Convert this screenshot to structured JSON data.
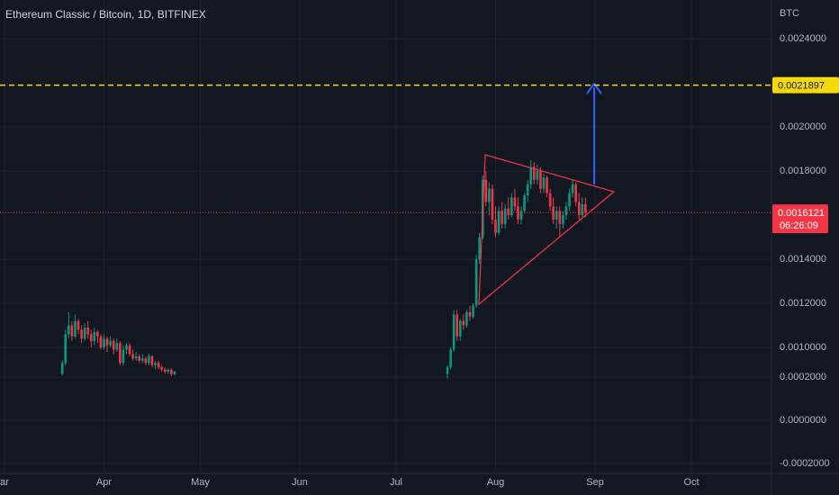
{
  "chart_data": {
    "type": "candlestick",
    "title": "Ethereum Classic / Bitcoin, 1D, BITFINEX",
    "currency": "BTC",
    "up_color": "#089981",
    "down_color": "#f23645",
    "target_price": 0.0021897,
    "target_color": "#f5d90a",
    "last_price": 0.0016121,
    "countdown": "06:26:09",
    "last_color": "#f23645",
    "xlim": [
      -1.4,
      238.4
    ],
    "xticks": [
      {
        "value": 0,
        "label": "ar"
      },
      {
        "value": 31,
        "label": "Apr"
      },
      {
        "value": 61,
        "label": "May"
      },
      {
        "value": 92,
        "label": "Jun"
      },
      {
        "value": 122,
        "label": "Jul"
      },
      {
        "value": 153,
        "label": "Aug"
      },
      {
        "value": 184,
        "label": "Sep"
      },
      {
        "value": 214,
        "label": "Oct"
      }
    ],
    "ylim": [
      0.000433,
      0.002576
    ],
    "yticks": [
      {
        "value": 0.0024,
        "label": "0.0024000"
      },
      {
        "value": 0.002,
        "label": "0.0020000"
      },
      {
        "value": 0.0018,
        "label": "0.0018000"
      },
      {
        "value": 0.0014,
        "label": "0.0014000"
      },
      {
        "value": 0.0012,
        "label": "0.0012000"
      },
      {
        "value": 0.001,
        "label": "0.0010000"
      }
    ],
    "y2lim": [
      -0.000242,
      0.001946
    ],
    "y2ticks": [
      {
        "value": 0.0002,
        "label": "0.0002000"
      },
      {
        "value": 0,
        "label": "0.0000000"
      },
      {
        "value": -0.0002,
        "label": "-0.0002000"
      }
    ],
    "x": [
      18,
      19,
      20,
      21,
      22,
      23,
      24,
      25,
      26,
      27,
      28,
      29,
      30,
      31,
      32,
      33,
      34,
      35,
      36,
      37,
      38,
      39,
      40,
      41,
      42,
      43,
      44,
      45,
      46,
      47,
      48,
      49,
      50,
      51,
      52,
      53,
      138,
      139,
      140,
      141,
      142,
      143,
      144,
      145,
      146,
      147,
      148,
      149,
      150,
      151,
      152,
      153,
      154,
      155,
      156,
      157,
      158,
      159,
      160,
      161,
      162,
      163,
      164,
      165,
      166,
      167,
      168,
      169,
      170,
      171,
      172,
      173,
      174,
      175,
      176,
      177,
      178,
      179,
      180,
      181
    ],
    "open": [
      0.00088,
      0.00093,
      0.00106,
      0.0011,
      0.00105,
      0.00112,
      0.00108,
      0.00104,
      0.00109,
      0.00106,
      0.00103,
      0.00107,
      0.00105,
      0.001,
      0.00104,
      0.00101,
      0.00103,
      0.00099,
      0.00102,
      0.00093,
      0.00099,
      0.00101,
      0.00097,
      0.00095,
      0.00096,
      0.00094,
      0.00095,
      0.00093,
      0.00096,
      0.00092,
      0.00093,
      0.00091,
      0.0009,
      0.00089,
      0.0009,
      0.00088,
      0.00088,
      0.00091,
      0.00099,
      0.00115,
      0.00105,
      0.00112,
      0.0011,
      0.00116,
      0.00114,
      0.00119,
      0.0014,
      0.0015,
      0.00176,
      0.00166,
      0.00172,
      0.00158,
      0.00152,
      0.00162,
      0.00156,
      0.00163,
      0.0016,
      0.00168,
      0.00164,
      0.00158,
      0.00162,
      0.00169,
      0.00174,
      0.00182,
      0.00176,
      0.0018,
      0.00172,
      0.00177,
      0.0017,
      0.00164,
      0.00158,
      0.00162,
      0.00156,
      0.0016,
      0.00164,
      0.0017,
      0.00174,
      0.00166,
      0.0016,
      0.00165
    ],
    "high": [
      0.00094,
      0.00108,
      0.00116,
      0.00112,
      0.00115,
      0.00113,
      0.0011,
      0.00111,
      0.00112,
      0.00108,
      0.00109,
      0.00108,
      0.00106,
      0.00106,
      0.00105,
      0.00105,
      0.00104,
      0.00104,
      0.00103,
      0.00101,
      0.00102,
      0.00102,
      0.00099,
      0.00098,
      0.00097,
      0.00097,
      0.00096,
      0.00097,
      0.000965,
      0.00094,
      0.00094,
      0.00092,
      0.00091,
      0.000905,
      0.000905,
      0.000895,
      0.00092,
      0.001,
      0.00117,
      0.00117,
      0.00113,
      0.00115,
      0.00117,
      0.00119,
      0.0012,
      0.00142,
      0.00152,
      0.00178,
      0.0018,
      0.00175,
      0.00174,
      0.00164,
      0.00164,
      0.00166,
      0.00165,
      0.00168,
      0.0017,
      0.00172,
      0.00168,
      0.00164,
      0.0017,
      0.00176,
      0.00185,
      0.00184,
      0.00183,
      0.00182,
      0.00179,
      0.00178,
      0.00172,
      0.00168,
      0.00164,
      0.00164,
      0.00162,
      0.00166,
      0.00172,
      0.00176,
      0.00175,
      0.0017,
      0.00168,
      0.00168
    ],
    "low": [
      0.000875,
      0.00092,
      0.00104,
      0.00103,
      0.00104,
      0.00106,
      0.00102,
      0.00103,
      0.00104,
      0.001,
      0.00101,
      0.00102,
      0.00099,
      0.00099,
      0.00098,
      0.001,
      0.00097,
      0.00098,
      0.00092,
      0.00092,
      0.00097,
      0.00096,
      0.00094,
      0.00094,
      0.00093,
      0.00093,
      0.00092,
      0.00092,
      0.00091,
      0.0009,
      0.0009,
      0.00089,
      0.00088,
      0.00088,
      0.00087,
      0.000875,
      0.00086,
      0.0009,
      0.00098,
      0.00103,
      0.00103,
      0.00108,
      0.00109,
      0.00112,
      0.00113,
      0.00118,
      0.00138,
      0.00149,
      0.00164,
      0.0016,
      0.00156,
      0.0015,
      0.00151,
      0.00154,
      0.00154,
      0.00158,
      0.00159,
      0.00162,
      0.00156,
      0.00156,
      0.00161,
      0.00166,
      0.00172,
      0.00174,
      0.00174,
      0.0017,
      0.0017,
      0.00168,
      0.00162,
      0.00156,
      0.00154,
      0.0015,
      0.00154,
      0.00158,
      0.00162,
      0.00168,
      0.00164,
      0.00158,
      0.00159,
      0.00159
    ],
    "close": [
      0.00093,
      0.00106,
      0.0011,
      0.00105,
      0.00112,
      0.00108,
      0.00104,
      0.00109,
      0.00106,
      0.00103,
      0.00107,
      0.00105,
      0.001,
      0.00104,
      0.00101,
      0.00103,
      0.00099,
      0.00102,
      0.00093,
      0.00099,
      0.00101,
      0.00097,
      0.00095,
      0.00096,
      0.00094,
      0.00095,
      0.00093,
      0.00096,
      0.00092,
      0.00093,
      0.00091,
      0.0009,
      0.00089,
      0.0009,
      0.00088,
      0.00089,
      0.00091,
      0.00099,
      0.00115,
      0.00105,
      0.00112,
      0.0011,
      0.00116,
      0.00114,
      0.00119,
      0.0014,
      0.0015,
      0.00176,
      0.00166,
      0.00172,
      0.00158,
      0.00152,
      0.00162,
      0.00156,
      0.00163,
      0.0016,
      0.00168,
      0.00164,
      0.00158,
      0.00162,
      0.00169,
      0.00174,
      0.00182,
      0.00176,
      0.0018,
      0.00172,
      0.00177,
      0.0017,
      0.00164,
      0.00158,
      0.00162,
      0.00156,
      0.0016,
      0.00164,
      0.0017,
      0.00174,
      0.00166,
      0.0016,
      0.00165,
      0.0016121
    ]
  }
}
